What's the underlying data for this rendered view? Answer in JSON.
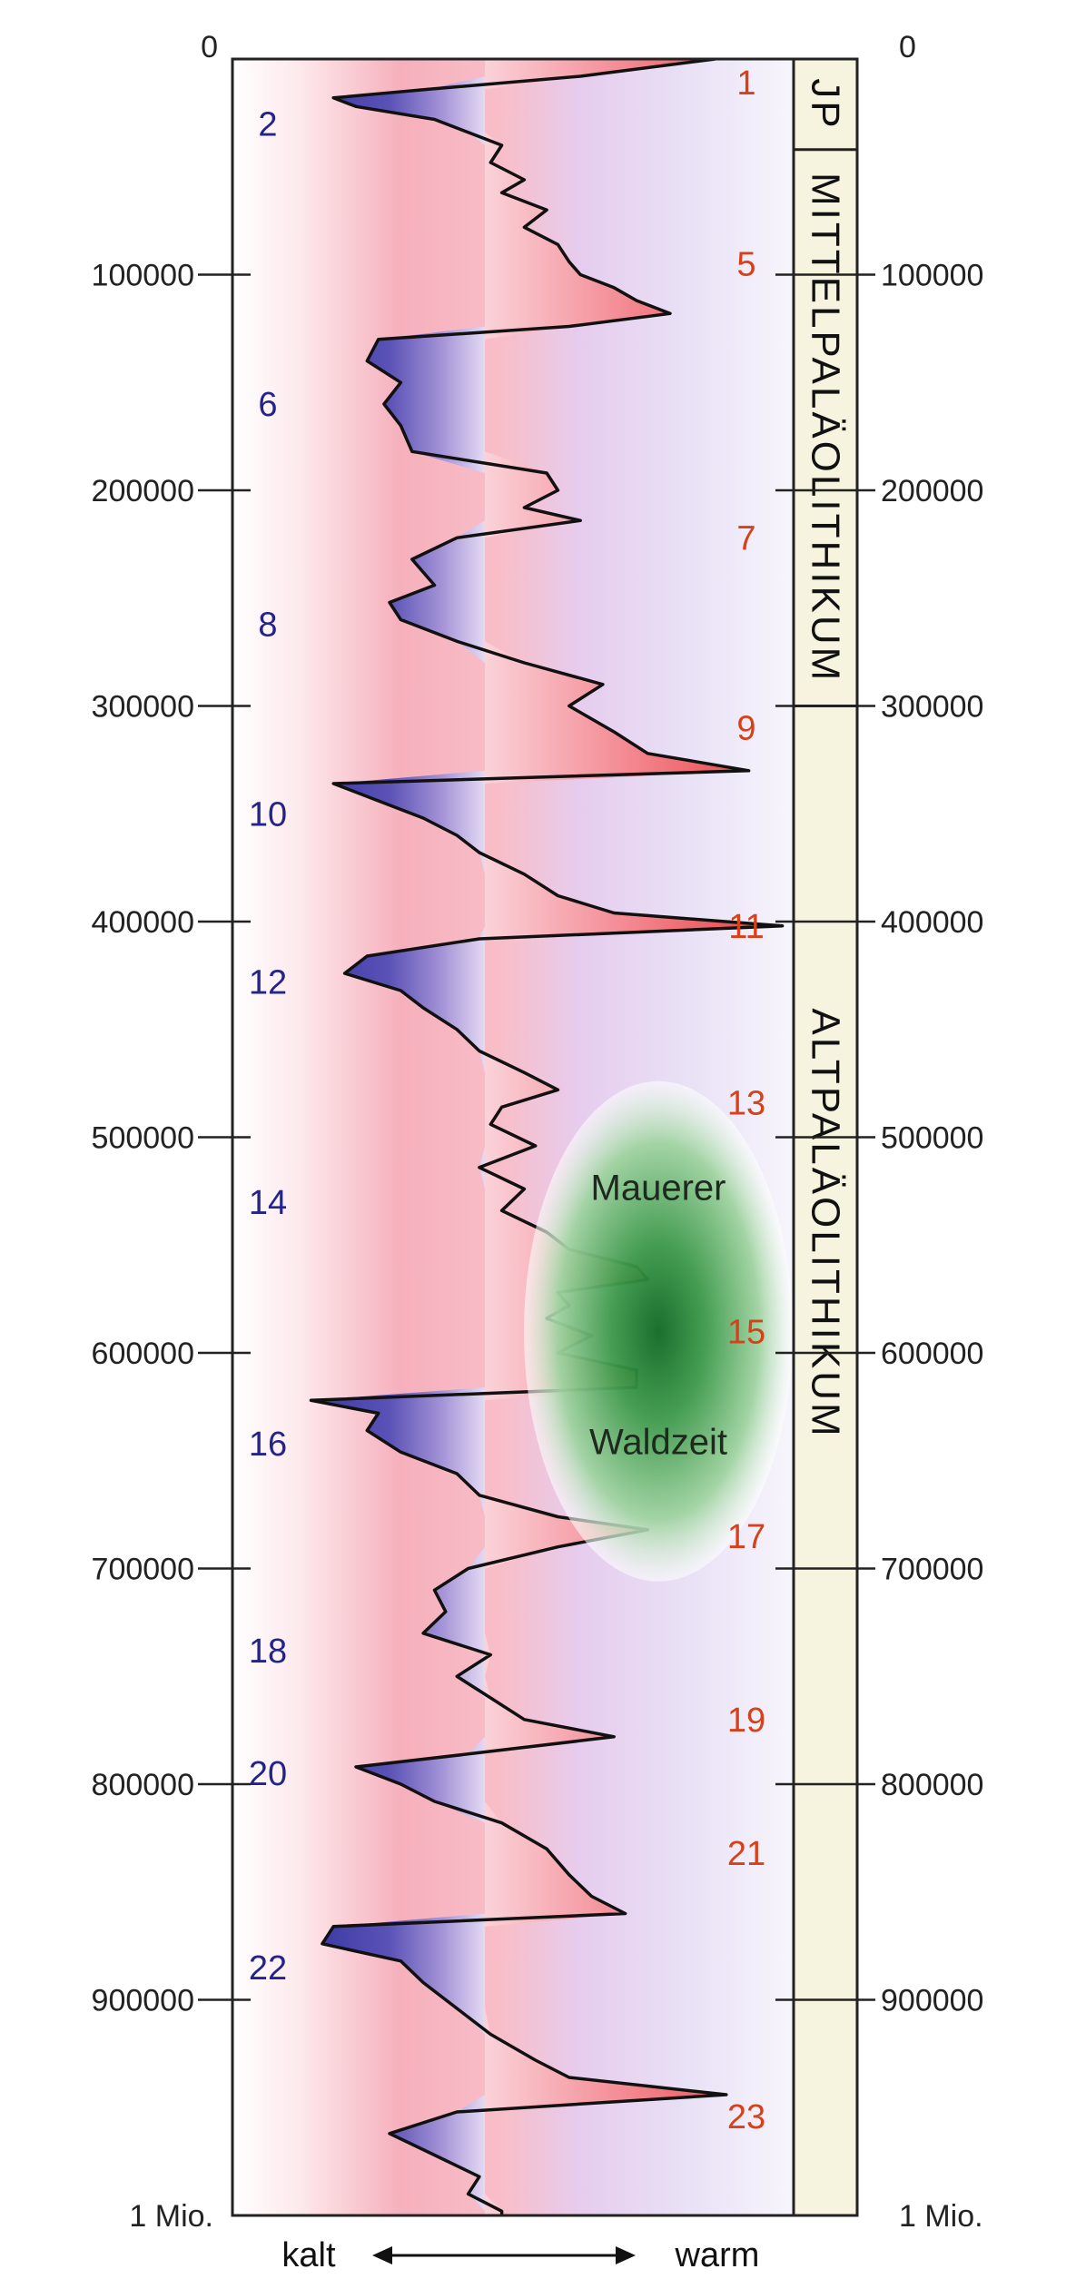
{
  "chart_data": {
    "type": "line",
    "orientation": "vertical",
    "y_axis": {
      "ticks": [
        "0",
        "100000",
        "200000",
        "300000",
        "400000",
        "500000",
        "600000",
        "700000",
        "800000",
        "900000"
      ],
      "tick_values": [
        0,
        100000,
        200000,
        300000,
        400000,
        500000,
        600000,
        700000,
        800000,
        900000
      ],
      "end_label": "1 Mio.",
      "range": [
        0,
        1000000
      ]
    },
    "x_axis": {
      "left_label": "kalt",
      "right_label": "warm",
      "range": [
        0,
        1
      ]
    },
    "series": [
      {
        "points": [
          [
            0,
            0.86
          ],
          [
            8000,
            0.62
          ],
          [
            14000,
            0.35
          ],
          [
            18000,
            0.18
          ],
          [
            22000,
            0.22
          ],
          [
            28000,
            0.36
          ],
          [
            34000,
            0.42
          ],
          [
            40000,
            0.48
          ],
          [
            48000,
            0.46
          ],
          [
            56000,
            0.52
          ],
          [
            62000,
            0.48
          ],
          [
            70000,
            0.56
          ],
          [
            78000,
            0.52
          ],
          [
            86000,
            0.58
          ],
          [
            94000,
            0.6
          ],
          [
            100000,
            0.62
          ],
          [
            106000,
            0.68
          ],
          [
            112000,
            0.72
          ],
          [
            118000,
            0.78
          ],
          [
            124000,
            0.6
          ],
          [
            130000,
            0.26
          ],
          [
            140000,
            0.24
          ],
          [
            150000,
            0.3
          ],
          [
            160000,
            0.27
          ],
          [
            170000,
            0.3
          ],
          [
            182000,
            0.32
          ],
          [
            192000,
            0.56
          ],
          [
            200000,
            0.58
          ],
          [
            208000,
            0.52
          ],
          [
            214000,
            0.62
          ],
          [
            222000,
            0.4
          ],
          [
            232000,
            0.32
          ],
          [
            244000,
            0.36
          ],
          [
            252000,
            0.28
          ],
          [
            260000,
            0.3
          ],
          [
            270000,
            0.4
          ],
          [
            280000,
            0.52
          ],
          [
            290000,
            0.66
          ],
          [
            300000,
            0.6
          ],
          [
            312000,
            0.68
          ],
          [
            322000,
            0.74
          ],
          [
            330000,
            0.92
          ],
          [
            336000,
            0.18
          ],
          [
            344000,
            0.26
          ],
          [
            352000,
            0.34
          ],
          [
            360000,
            0.4
          ],
          [
            368000,
            0.44
          ],
          [
            378000,
            0.52
          ],
          [
            388000,
            0.58
          ],
          [
            396000,
            0.68
          ],
          [
            402000,
            0.98
          ],
          [
            408000,
            0.44
          ],
          [
            416000,
            0.24
          ],
          [
            424000,
            0.2
          ],
          [
            432000,
            0.3
          ],
          [
            440000,
            0.34
          ],
          [
            450000,
            0.4
          ],
          [
            460000,
            0.44
          ],
          [
            470000,
            0.52
          ],
          [
            478000,
            0.58
          ],
          [
            486000,
            0.48
          ],
          [
            494000,
            0.46
          ],
          [
            504000,
            0.54
          ],
          [
            514000,
            0.44
          ],
          [
            524000,
            0.52
          ],
          [
            534000,
            0.48
          ],
          [
            544000,
            0.56
          ],
          [
            552000,
            0.6
          ],
          [
            560000,
            0.72
          ],
          [
            566000,
            0.74
          ],
          [
            572000,
            0.58
          ],
          [
            578000,
            0.6
          ],
          [
            584000,
            0.56
          ],
          [
            592000,
            0.64
          ],
          [
            600000,
            0.58
          ],
          [
            608000,
            0.72
          ],
          [
            616000,
            0.72
          ],
          [
            622000,
            0.14
          ],
          [
            628000,
            0.26
          ],
          [
            636000,
            0.24
          ],
          [
            646000,
            0.3
          ],
          [
            656000,
            0.4
          ],
          [
            666000,
            0.44
          ],
          [
            676000,
            0.58
          ],
          [
            682000,
            0.74
          ],
          [
            690000,
            0.58
          ],
          [
            700000,
            0.42
          ],
          [
            710000,
            0.36
          ],
          [
            720000,
            0.38
          ],
          [
            730000,
            0.34
          ],
          [
            740000,
            0.46
          ],
          [
            750000,
            0.4
          ],
          [
            760000,
            0.46
          ],
          [
            770000,
            0.52
          ],
          [
            778000,
            0.68
          ],
          [
            786000,
            0.42
          ],
          [
            792000,
            0.22
          ],
          [
            800000,
            0.3
          ],
          [
            808000,
            0.36
          ],
          [
            818000,
            0.48
          ],
          [
            830000,
            0.56
          ],
          [
            842000,
            0.6
          ],
          [
            852000,
            0.64
          ],
          [
            860000,
            0.7
          ],
          [
            866000,
            0.18
          ],
          [
            874000,
            0.16
          ],
          [
            882000,
            0.3
          ],
          [
            892000,
            0.34
          ],
          [
            904000,
            0.4
          ],
          [
            916000,
            0.46
          ],
          [
            928000,
            0.54
          ],
          [
            936000,
            0.6
          ],
          [
            944000,
            0.88
          ],
          [
            952000,
            0.4
          ],
          [
            962000,
            0.28
          ],
          [
            972000,
            0.36
          ],
          [
            982000,
            0.44
          ],
          [
            990000,
            0.42
          ],
          [
            998000,
            0.48
          ],
          [
            1000000,
            0.48
          ]
        ]
      }
    ],
    "stages_cold": [
      {
        "label": "2",
        "y": 30000
      },
      {
        "label": "6",
        "y": 160000
      },
      {
        "label": "8",
        "y": 262000
      },
      {
        "label": "10",
        "y": 350000
      },
      {
        "label": "12",
        "y": 428000
      },
      {
        "label": "14",
        "y": 530000
      },
      {
        "label": "16",
        "y": 642000
      },
      {
        "label": "18",
        "y": 738000
      },
      {
        "label": "20",
        "y": 795000
      },
      {
        "label": "22",
        "y": 885000
      }
    ],
    "stages_warm": [
      {
        "label": "1",
        "y": 11000
      },
      {
        "label": "5",
        "y": 95000
      },
      {
        "label": "7",
        "y": 222000
      },
      {
        "label": "9",
        "y": 310000
      },
      {
        "label": "11",
        "y": 402000
      },
      {
        "label": "13",
        "y": 484000
      },
      {
        "label": "15",
        "y": 590000
      },
      {
        "label": "17",
        "y": 685000
      },
      {
        "label": "19",
        "y": 770000
      },
      {
        "label": "21",
        "y": 832000
      },
      {
        "label": "23",
        "y": 954000
      }
    ],
    "periods": [
      {
        "label": "JP",
        "y_start": 0,
        "y_end": 42000
      },
      {
        "label": "MITTELPALÄOLITHIKUM",
        "y_start": 42000,
        "y_end": 300000
      },
      {
        "label": "ALTPALÄOLITHIKUM",
        "y_start": 300000,
        "y_end": 1000000
      }
    ],
    "annotation": {
      "line1": "Mauerer",
      "line2": "Waldzeit",
      "y_center": 590000,
      "y_top": 470000,
      "y_bottom": 702000
    },
    "colors": {
      "cold": "#3e3ca8",
      "warm": "#ec5a5a",
      "outline": "#111111",
      "annotation": "#1d7a2a",
      "period_column": "#f6f3df",
      "cold_stage_text": "#23238c",
      "warm_stage_text": "#d8401a"
    }
  }
}
